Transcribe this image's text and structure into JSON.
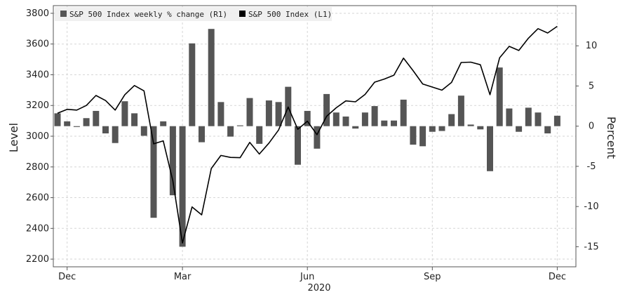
{
  "chart_data": {
    "type": "bar+line",
    "title": "",
    "legend": {
      "placement": "top-left",
      "entries": [
        {
          "label": "S&P 500 Index weekly % change (R1)",
          "color": "#555555"
        },
        {
          "label": "S&P 500 Index (L1)",
          "color": "#000000"
        }
      ]
    },
    "axes": {
      "left": {
        "label": "Level",
        "range": [
          2150,
          3850
        ],
        "ticks": [
          "2200",
          "2400",
          "2600",
          "2800",
          "3000",
          "3200",
          "3400",
          "3600",
          "3800"
        ]
      },
      "right": {
        "label": "Percent",
        "range": [
          -17.5,
          15
        ],
        "ticks": [
          "10",
          "5",
          "0",
          "-5",
          "-10",
          "-15"
        ]
      },
      "x": {
        "label": "2020",
        "ticks": [
          "Dec",
          "Mar",
          "Jun",
          "Sep",
          "Dec"
        ],
        "grid": true
      }
    },
    "series": [
      {
        "name": "S&P 500 Index weekly % change (R1)",
        "axis": "right",
        "kind": "bar",
        "values": [
          1.6,
          0.6,
          -0.1,
          1.0,
          1.9,
          -0.9,
          -2.1,
          3.1,
          1.6,
          -1.2,
          -11.4,
          0.6,
          -8.6,
          -15.0,
          10.3,
          -2.0,
          12.1,
          3.0,
          -1.3,
          0.1,
          3.5,
          -2.2,
          3.2,
          3.0,
          4.9,
          -4.8,
          1.9,
          -2.8,
          4.0,
          1.7,
          1.2,
          -0.3,
          1.7,
          2.5,
          0.7,
          0.7,
          3.3,
          -2.3,
          -2.5,
          -0.7,
          -0.6,
          1.5,
          3.8,
          0.2,
          -0.4,
          -5.6,
          7.3,
          2.2,
          -0.7,
          2.3,
          1.7,
          -0.9,
          1.3
        ]
      },
      {
        "name": "S&P 500 Index (L1)",
        "axis": "left",
        "kind": "line",
        "values": [
          3150,
          3175,
          3170,
          3200,
          3265,
          3232,
          3170,
          3270,
          3330,
          3295,
          2950,
          2970,
          2710,
          2305,
          2540,
          2488,
          2790,
          2875,
          2862,
          2860,
          2960,
          2884,
          2955,
          3040,
          3190,
          3045,
          3098,
          3010,
          3130,
          3185,
          3230,
          3224,
          3272,
          3352,
          3372,
          3397,
          3508,
          3427,
          3340,
          3320,
          3300,
          3350,
          3480,
          3482,
          3465,
          3270,
          3510,
          3585,
          3558,
          3638,
          3700,
          3672,
          3715
        ]
      }
    ]
  }
}
